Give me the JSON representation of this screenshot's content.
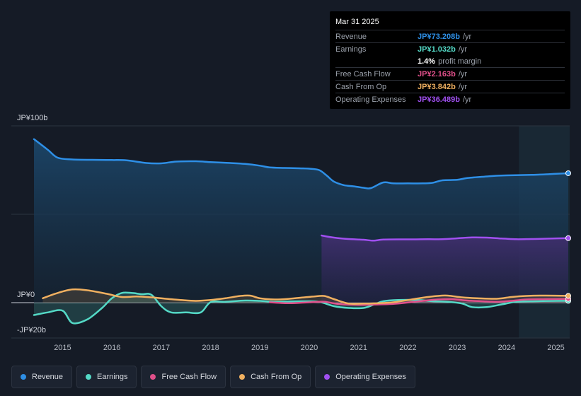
{
  "tooltip": {
    "date": "Mar 31 2025",
    "rows": [
      {
        "label": "Revenue",
        "value": "JP¥73.208b",
        "unit": "/yr",
        "color": "#2e8fe6"
      },
      {
        "label": "Earnings",
        "value": "JP¥1.032b",
        "unit": "/yr",
        "color": "#54d9c6"
      },
      {
        "label": "",
        "value": "1.4%",
        "unit": "profit margin",
        "color": "#ffffff"
      },
      {
        "label": "Free Cash Flow",
        "value": "JP¥2.163b",
        "unit": "/yr",
        "color": "#e0508a"
      },
      {
        "label": "Cash From Op",
        "value": "JP¥3.842b",
        "unit": "/yr",
        "color": "#f0b060"
      },
      {
        "label": "Operating Expenses",
        "value": "JP¥36.489b",
        "unit": "/yr",
        "color": "#a050f0"
      }
    ]
  },
  "legend": [
    {
      "label": "Revenue",
      "color": "#2e8fe6"
    },
    {
      "label": "Earnings",
      "color": "#54d9c6"
    },
    {
      "label": "Free Cash Flow",
      "color": "#e0508a"
    },
    {
      "label": "Cash From Op",
      "color": "#f0b060"
    },
    {
      "label": "Operating Expenses",
      "color": "#a050f0"
    }
  ],
  "chart_data": {
    "type": "area",
    "title": "",
    "unit": "JP¥ b /yr",
    "ylim": [
      -20,
      100
    ],
    "y_tick_labels": [
      {
        "value": 100,
        "label": "JP¥100b"
      },
      {
        "value": 0,
        "label": "JP¥0"
      },
      {
        "value": -20,
        "label": "-JP¥20b"
      }
    ],
    "x_ticks": [
      "2015",
      "2016",
      "2017",
      "2018",
      "2019",
      "2020",
      "2021",
      "2022",
      "2023",
      "2024",
      "2025"
    ],
    "xlim": [
      2014.4,
      2025.3
    ],
    "highlight_range": [
      2024.25,
      2025.3
    ],
    "series": [
      {
        "name": "Revenue",
        "color": "#2e8fe6",
        "fill": true,
        "x": [
          2014.42,
          2014.7,
          2014.9,
          2015.2,
          2015.6,
          2016.0,
          2016.3,
          2016.7,
          2017.0,
          2017.3,
          2017.7,
          2018.0,
          2018.4,
          2018.7,
          2019.0,
          2019.2,
          2019.5,
          2019.8,
          2020.0,
          2020.2,
          2020.35,
          2020.5,
          2020.7,
          2020.9,
          2021.1,
          2021.25,
          2021.5,
          2021.7,
          2022.0,
          2022.3,
          2022.5,
          2022.7,
          2023.0,
          2023.2,
          2023.5,
          2023.8,
          2024.0,
          2024.5,
          2024.8,
          2025.0,
          2025.25
        ],
        "values": [
          92.5,
          86.5,
          82.0,
          81.0,
          80.8,
          80.7,
          80.5,
          79.0,
          78.8,
          79.8,
          80.0,
          79.5,
          79.0,
          78.5,
          77.5,
          76.5,
          76.2,
          76.0,
          75.8,
          75.0,
          72.0,
          68.5,
          66.5,
          65.8,
          65.0,
          64.8,
          68.0,
          67.5,
          67.5,
          67.5,
          67.8,
          69.2,
          69.5,
          70.5,
          71.2,
          71.8,
          72.0,
          72.3,
          72.6,
          72.9,
          73.208
        ]
      },
      {
        "name": "Earnings",
        "color": "#54d9c6",
        "fill": true,
        "x": [
          2014.42,
          2014.7,
          2015.0,
          2015.2,
          2015.5,
          2015.8,
          2016.0,
          2016.2,
          2016.4,
          2016.6,
          2016.8,
          2017.0,
          2017.2,
          2017.5,
          2017.8,
          2018.0,
          2018.3,
          2018.7,
          2019.0,
          2019.3,
          2019.6,
          2019.9,
          2020.2,
          2020.5,
          2020.8,
          2021.1,
          2021.3,
          2021.5,
          2021.8,
          2022.2,
          2022.5,
          2022.8,
          2023.1,
          2023.3,
          2023.6,
          2023.9,
          2024.2,
          2024.6,
          2025.0,
          2025.25
        ],
        "values": [
          -7.0,
          -5.5,
          -4.5,
          -11.5,
          -9.5,
          -3.0,
          2.5,
          5.5,
          5.5,
          4.8,
          4.5,
          -2.0,
          -5.5,
          -5.5,
          -5.5,
          0.3,
          0.5,
          1.2,
          1.0,
          0.5,
          0.7,
          0.8,
          0.5,
          -2.0,
          -3.0,
          -3.0,
          -1.2,
          0.8,
          1.5,
          1.5,
          0.8,
          0.5,
          -0.5,
          -2.5,
          -2.5,
          -1.0,
          0.5,
          0.8,
          1.0,
          1.032
        ]
      },
      {
        "name": "Free Cash Flow",
        "color": "#e0508a",
        "fill": true,
        "x": [
          2019.2,
          2019.6,
          2020.0,
          2020.3,
          2020.6,
          2021.0,
          2021.3,
          2021.7,
          2022.0,
          2022.3,
          2022.6,
          2022.9,
          2023.2,
          2023.5,
          2023.8,
          2024.1,
          2024.4,
          2024.8,
          2025.25
        ],
        "values": [
          0.2,
          -0.3,
          0.2,
          0.5,
          -0.8,
          -1.3,
          -1.1,
          -0.7,
          0.1,
          1.0,
          1.8,
          2.0,
          1.2,
          0.8,
          0.5,
          1.0,
          1.8,
          2.0,
          2.163
        ]
      },
      {
        "name": "Cash From Op",
        "color": "#f0b060",
        "fill": true,
        "x": [
          2014.6,
          2014.9,
          2015.2,
          2015.5,
          2015.9,
          2016.2,
          2016.5,
          2016.8,
          2017.1,
          2017.4,
          2017.7,
          2018.0,
          2018.3,
          2018.6,
          2018.8,
          2019.0,
          2019.3,
          2019.6,
          2019.9,
          2020.1,
          2020.3,
          2020.5,
          2020.8,
          2021.1,
          2021.4,
          2021.7,
          2022.0,
          2022.3,
          2022.6,
          2022.8,
          2023.1,
          2023.4,
          2023.8,
          2024.1,
          2024.4,
          2024.8,
          2025.25
        ],
        "values": [
          2.5,
          5.5,
          7.5,
          7.0,
          5.0,
          3.2,
          3.5,
          3.0,
          2.2,
          1.5,
          1.0,
          1.5,
          2.5,
          3.8,
          4.0,
          2.5,
          1.8,
          2.2,
          3.0,
          3.5,
          3.8,
          2.0,
          -0.5,
          -0.5,
          -0.3,
          0.2,
          1.5,
          2.8,
          3.8,
          4.0,
          3.0,
          2.5,
          2.2,
          3.2,
          3.8,
          4.0,
          3.842
        ]
      },
      {
        "name": "Operating Expenses",
        "color": "#a050f0",
        "fill": true,
        "x": [
          2020.25,
          2020.5,
          2020.8,
          2021.1,
          2021.3,
          2021.5,
          2021.8,
          2022.1,
          2022.4,
          2022.7,
          2023.0,
          2023.3,
          2023.6,
          2023.9,
          2024.2,
          2024.5,
          2024.8,
          2025.25
        ],
        "values": [
          38.0,
          36.8,
          36.0,
          35.6,
          35.1,
          35.7,
          35.8,
          35.8,
          35.9,
          35.9,
          36.4,
          36.9,
          36.8,
          36.3,
          35.9,
          36.0,
          36.2,
          36.489
        ]
      }
    ]
  }
}
